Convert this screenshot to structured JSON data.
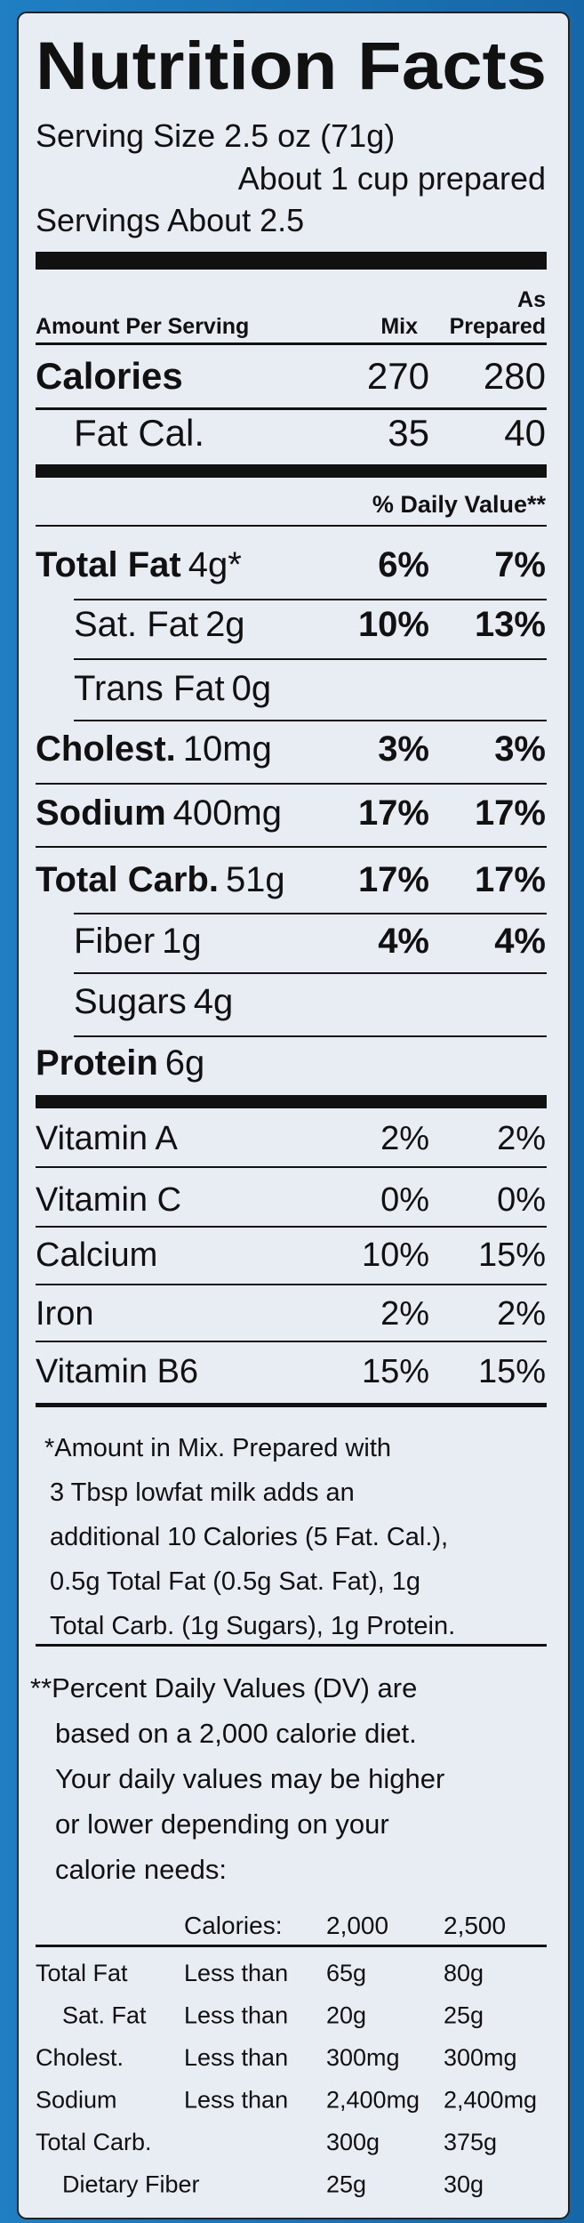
{
  "header": {
    "title": "Nutrition Facts",
    "serving_size": "Serving Size 2.5 oz (71g)",
    "serving_note": "About 1 cup prepared",
    "servings": "Servings About 2.5"
  },
  "columns": {
    "amount_per_serving": "Amount Per Serving",
    "mix": "Mix",
    "prepared_top": "As",
    "prepared": "Prepared"
  },
  "calories": [
    {
      "name": "Calories",
      "mix": 270,
      "prepared": 280
    },
    {
      "name": "Fat Cal.",
      "mix": 35,
      "prepared": 40
    }
  ],
  "daily_value_header": "% Daily Value**",
  "nutrients": [
    {
      "name": "Total Fat",
      "amount": "4g*",
      "mix": "6%",
      "prepared": "7%"
    },
    {
      "name": "Sat. Fat",
      "amount": "2g",
      "mix": "10%",
      "prepared": "13%"
    },
    {
      "name": "Trans Fat",
      "amount": "0g"
    },
    {
      "name": "Cholest.",
      "amount": "10mg",
      "mix": "3%",
      "prepared": "3%"
    },
    {
      "name": "Sodium",
      "amount": "400mg",
      "mix": "17%",
      "prepared": "17%"
    },
    {
      "name": "Total Carb.",
      "amount": "51g",
      "mix": "17%",
      "prepared": "17%"
    },
    {
      "name": "Fiber",
      "amount": "1g",
      "mix": "4%",
      "prepared": "4%"
    },
    {
      "name": "Sugars",
      "amount": "4g"
    },
    {
      "name": "Protein",
      "amount": "6g"
    }
  ],
  "vitamins": [
    {
      "name": "Vitamin A",
      "mix": "2%",
      "prepared": "2%"
    },
    {
      "name": "Vitamin C",
      "mix": "0%",
      "prepared": "0%"
    },
    {
      "name": "Calcium",
      "mix": "10%",
      "prepared": "15%"
    },
    {
      "name": "Iron",
      "mix": "2%",
      "prepared": "2%"
    },
    {
      "name": "Vitamin B6",
      "mix": "15%",
      "prepared": "15%"
    }
  ],
  "footnote_mix": [
    "*Amount in Mix. Prepared with",
    "3 Tbsp lowfat milk adds an",
    "additional 10 Calories (5 Fat. Cal.),",
    "0.5g Total Fat (0.5g Sat. Fat), 1g",
    "Total Carb. (1g Sugars), 1g Protein."
  ],
  "footnote_dv": [
    "**Percent Daily Values (DV) are",
    "based on a 2,000 calorie diet.",
    "Your daily values may be higher",
    "or lower depending on your",
    "calorie needs:"
  ],
  "dv_table": {
    "header": [
      "Calories:",
      "2,000",
      "2,500"
    ],
    "rows": [
      [
        "Total Fat",
        "Less than",
        "65g",
        "80g"
      ],
      [
        "Sat. Fat",
        "Less than",
        "20g",
        "25g"
      ],
      [
        "Cholest.",
        "Less than",
        "300mg",
        "300mg"
      ],
      [
        "Sodium",
        "Less than",
        "2,400mg",
        "2,400mg"
      ],
      [
        "Total Carb.",
        "300g",
        "375g"
      ],
      [
        "Dietary Fiber",
        "25g",
        "30g"
      ]
    ]
  }
}
